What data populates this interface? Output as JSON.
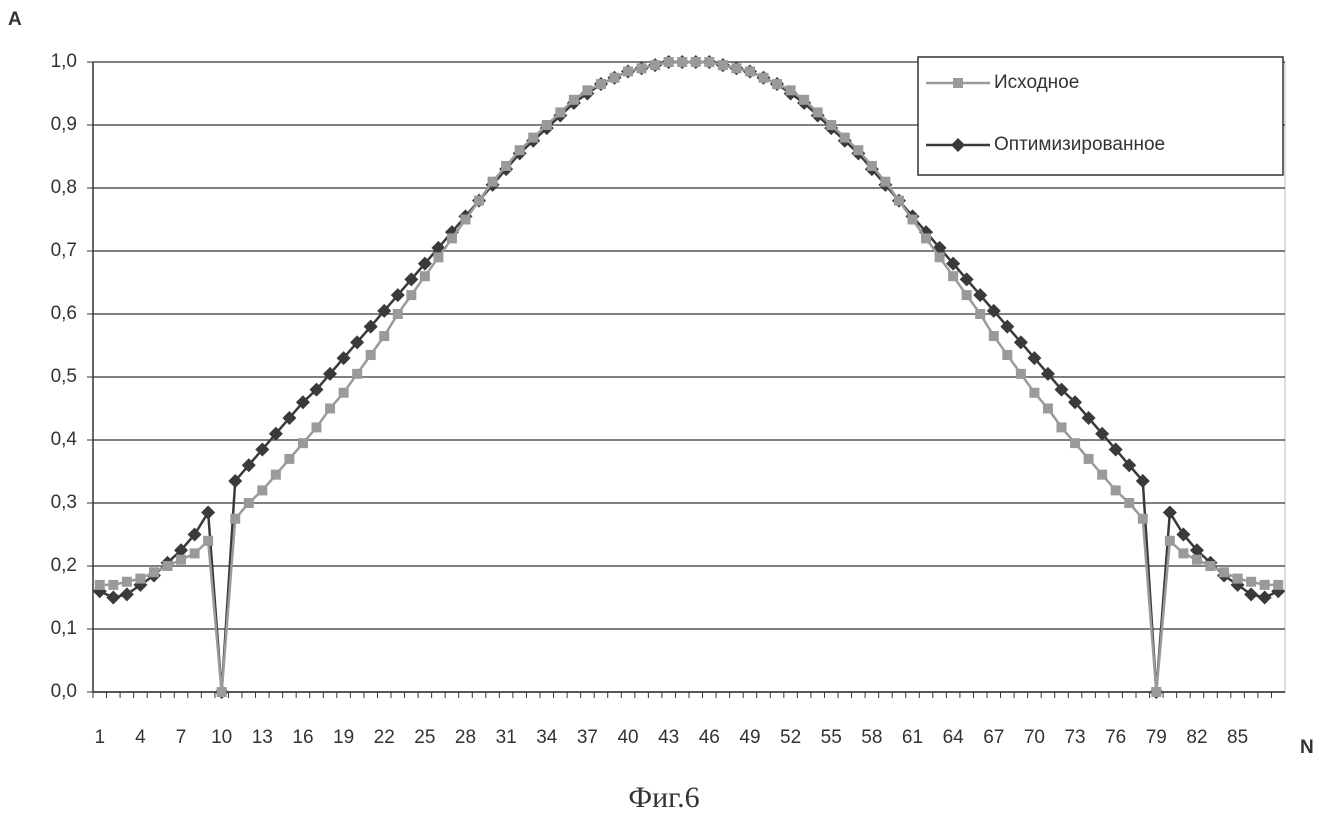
{
  "chart_data": {
    "type": "line",
    "caption": "Фиг.6",
    "y_label": "A",
    "x_label": "N",
    "categories": [
      1,
      null,
      null,
      4,
      null,
      null,
      7,
      null,
      null,
      10,
      null,
      null,
      13,
      null,
      null,
      16,
      null,
      null,
      19,
      null,
      null,
      22,
      null,
      null,
      25,
      null,
      null,
      28,
      null,
      null,
      31,
      null,
      null,
      34,
      null,
      null,
      37,
      null,
      null,
      40,
      null,
      null,
      43,
      null,
      null,
      46,
      null,
      null,
      49,
      null,
      null,
      52,
      null,
      null,
      55,
      null,
      null,
      58,
      null,
      null,
      61,
      null,
      null,
      64,
      null,
      null,
      67,
      null,
      null,
      70,
      null,
      null,
      73,
      null,
      null,
      76,
      null,
      null,
      79,
      null,
      null,
      82,
      null,
      null,
      85,
      null,
      null,
      null
    ],
    "series": [
      {
        "name": "Исходное",
        "color": "#9a9a9a",
        "marker": "square",
        "values": [
          0.17,
          0.17,
          0.175,
          0.18,
          0.19,
          0.2,
          0.21,
          0.22,
          0.24,
          0,
          0.275,
          0.3,
          0.32,
          0.345,
          0.37,
          0.395,
          0.42,
          0.45,
          0.475,
          0.505,
          0.535,
          0.565,
          0.6,
          0.63,
          0.66,
          0.69,
          0.72,
          0.75,
          0.78,
          0.81,
          0.835,
          0.86,
          0.88,
          0.9,
          0.92,
          0.94,
          0.955,
          0.965,
          0.975,
          0.985,
          0.99,
          0.995,
          1,
          1,
          1,
          1,
          0.995,
          0.99,
          0.985,
          0.975,
          0.965,
          0.955,
          0.94,
          0.92,
          0.9,
          0.88,
          0.86,
          0.835,
          0.81,
          0.78,
          0.75,
          0.72,
          0.69,
          0.66,
          0.63,
          0.6,
          0.565,
          0.535,
          0.505,
          0.475,
          0.45,
          0.42,
          0.395,
          0.37,
          0.345,
          0.32,
          0.3,
          0.275,
          0,
          0.24,
          0.22,
          0.21,
          0.2,
          0.19,
          0.18,
          0.175,
          0.17,
          0.17
        ]
      },
      {
        "name": "Оптимизированное",
        "color": "#3a3a3a",
        "marker": "diamond",
        "values": [
          0.16,
          0.15,
          0.155,
          0.17,
          0.185,
          0.205,
          0.225,
          0.25,
          0.285,
          0,
          0.335,
          0.36,
          0.385,
          0.41,
          0.435,
          0.46,
          0.48,
          0.505,
          0.53,
          0.555,
          0.58,
          0.605,
          0.63,
          0.655,
          0.68,
          0.705,
          0.73,
          0.755,
          0.78,
          0.805,
          0.83,
          0.855,
          0.875,
          0.895,
          0.915,
          0.935,
          0.95,
          0.965,
          0.975,
          0.985,
          0.99,
          0.995,
          1,
          1,
          1,
          1,
          0.995,
          0.99,
          0.985,
          0.975,
          0.965,
          0.95,
          0.935,
          0.915,
          0.895,
          0.875,
          0.855,
          0.83,
          0.805,
          0.78,
          0.755,
          0.73,
          0.705,
          0.68,
          0.655,
          0.63,
          0.605,
          0.58,
          0.555,
          0.53,
          0.505,
          0.48,
          0.46,
          0.435,
          0.41,
          0.385,
          0.36,
          0.335,
          0,
          0.285,
          0.25,
          0.225,
          0.205,
          0.185,
          0.17,
          0.155,
          0.15,
          0.16
        ]
      }
    ],
    "ylim": [
      0,
      1
    ],
    "yticks": [
      {
        "value": 0,
        "label": "0,0"
      },
      {
        "value": 0.1,
        "label": "0,1"
      },
      {
        "value": 0.2,
        "label": "0,2"
      },
      {
        "value": 0.3,
        "label": "0,3"
      },
      {
        "value": 0.4,
        "label": "0,4"
      },
      {
        "value": 0.5,
        "label": "0,5"
      },
      {
        "value": 0.6,
        "label": "0,6"
      },
      {
        "value": 0.7,
        "label": "0,7"
      },
      {
        "value": 0.8,
        "label": "0,8"
      },
      {
        "value": 0.9,
        "label": "0,9"
      },
      {
        "value": 1,
        "label": "1,0"
      }
    ],
    "grid": true,
    "legend": "top-right"
  }
}
